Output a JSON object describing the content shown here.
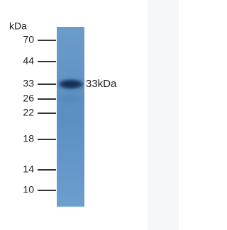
{
  "unit_label": "kDa",
  "markers": [
    70,
    44,
    33,
    26,
    22,
    18,
    14,
    10
  ],
  "band_label": "33kDa"
}
